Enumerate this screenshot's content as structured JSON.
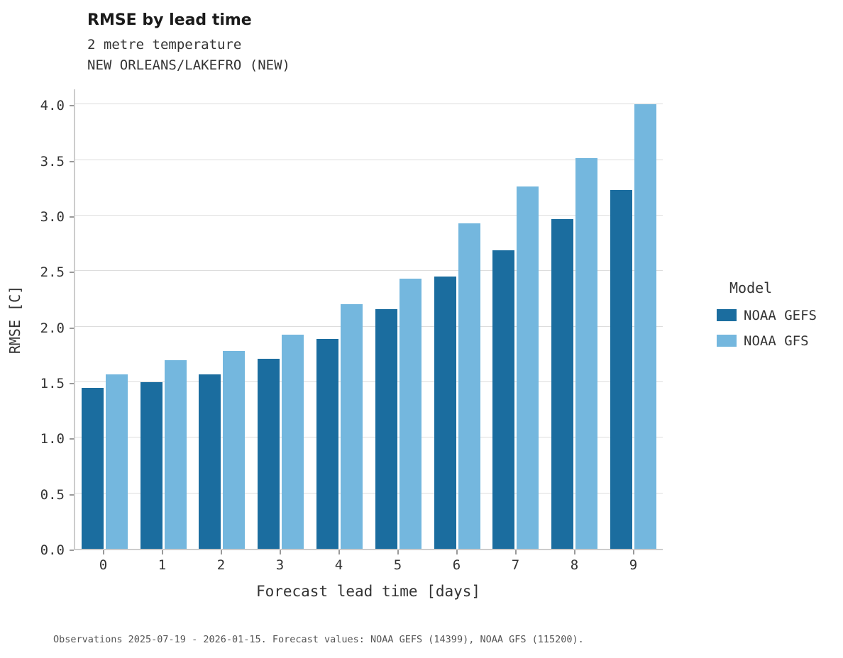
{
  "header": {
    "title": "RMSE by lead time",
    "subtitle1": "2 metre temperature",
    "subtitle2": "NEW ORLEANS/LAKEFRO (NEW)"
  },
  "chart_data": {
    "type": "bar",
    "title": "RMSE by lead time",
    "subtitle": [
      "2 metre temperature",
      "NEW ORLEANS/LAKEFRO (NEW)"
    ],
    "categories": [
      "0",
      "1",
      "2",
      "3",
      "4",
      "5",
      "6",
      "7",
      "8",
      "9"
    ],
    "series": [
      {
        "name": "NOAA GEFS",
        "color": "#1b6d9f",
        "values": [
          1.45,
          1.5,
          1.57,
          1.71,
          1.89,
          2.16,
          2.45,
          2.69,
          2.97,
          3.23
        ]
      },
      {
        "name": "NOAA GFS",
        "color": "#74b7de",
        "values": [
          1.57,
          1.7,
          1.78,
          1.93,
          2.2,
          2.43,
          2.93,
          3.26,
          3.52,
          4.0
        ]
      }
    ],
    "xlabel": "Forecast lead time [days]",
    "ylabel": "RMSE [C]",
    "ylim": [
      0,
      4.15
    ],
    "yticks": [
      0.0,
      0.5,
      1.0,
      1.5,
      2.0,
      2.5,
      3.0,
      3.5,
      4.0
    ],
    "legend_title": "Model",
    "legend_position": "right",
    "grid": true,
    "grid_color": "#dddddd"
  },
  "footer": {
    "note": "Observations 2025-07-19 - 2026-01-15. Forecast values: NOAA GEFS (14399), NOAA GFS (115200)."
  }
}
